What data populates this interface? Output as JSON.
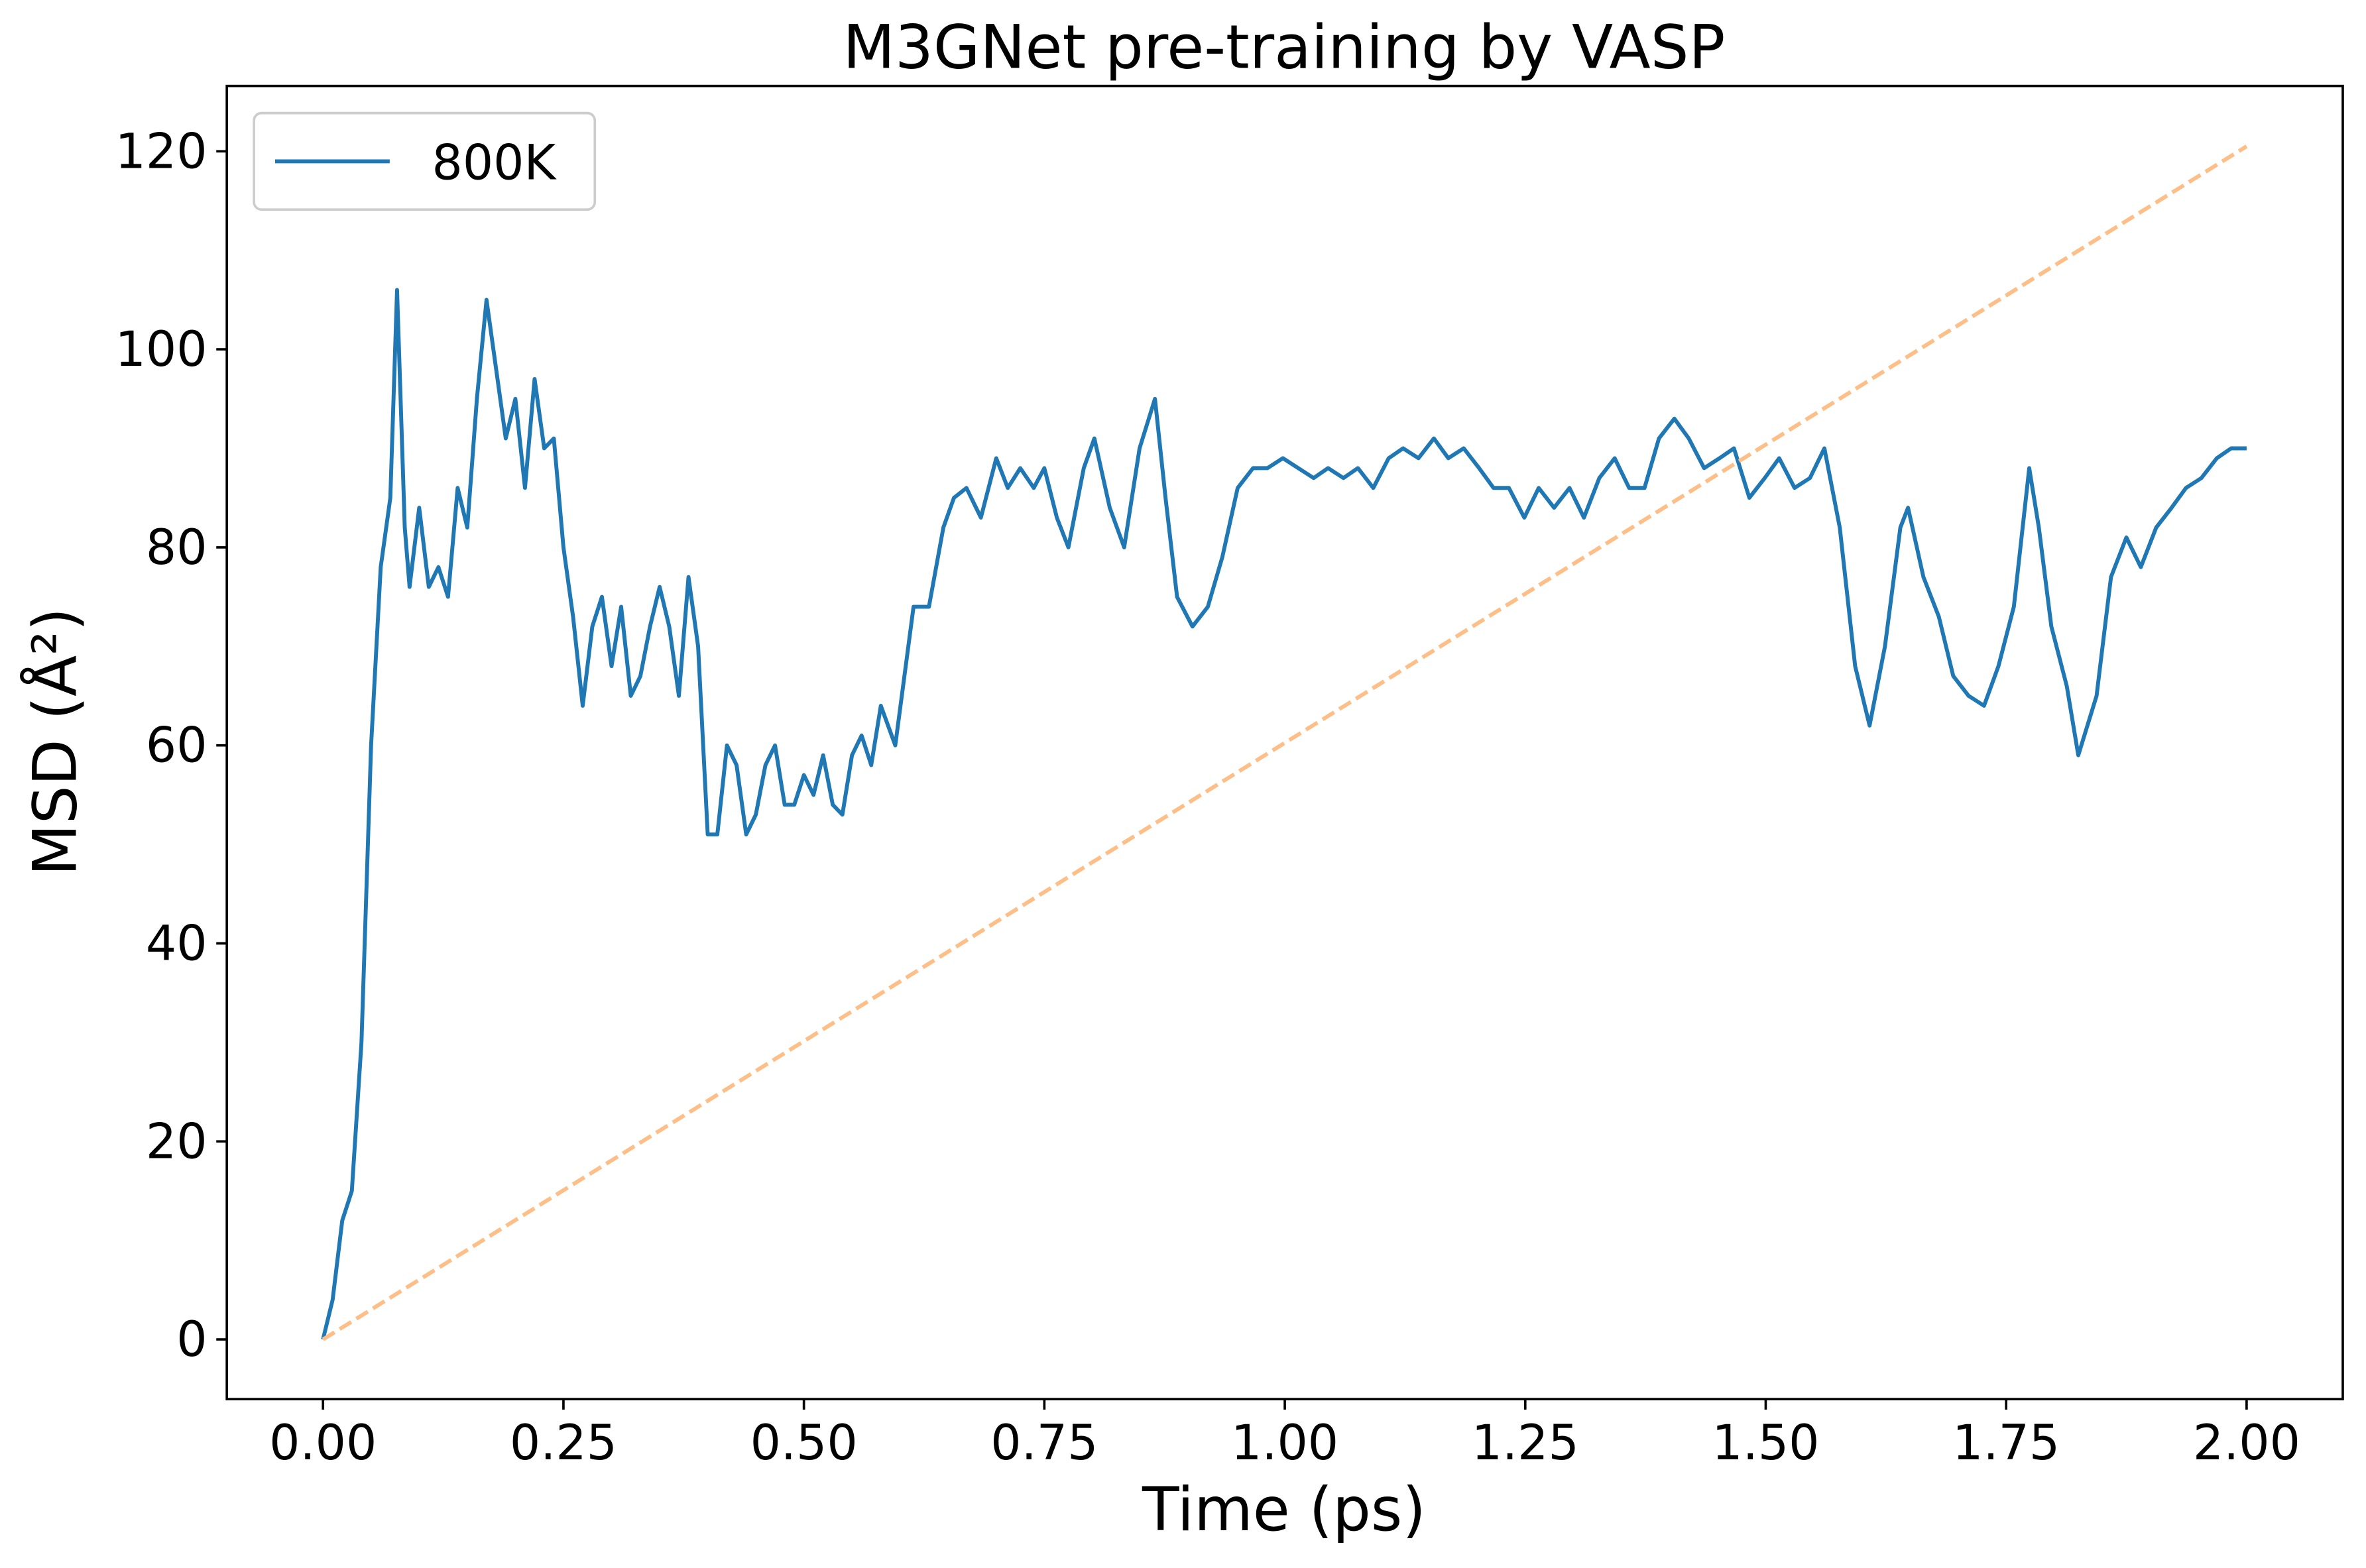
{
  "chart_data": {
    "type": "line",
    "title": "M3GNet pre-training by VASP",
    "xlabel": "Time (ps)",
    "ylabel": "MSD (Å²)",
    "xlim": [
      -0.1,
      2.1
    ],
    "ylim": [
      -6.03,
      126.6
    ],
    "xticks": [
      {
        "value": 0,
        "label": "0.00"
      },
      {
        "value": 0.25,
        "label": "0.25"
      },
      {
        "value": 0.5,
        "label": "0.50"
      },
      {
        "value": 0.75,
        "label": "0.75"
      },
      {
        "value": 1,
        "label": "1.00"
      },
      {
        "value": 1.25,
        "label": "1.25"
      },
      {
        "value": 1.5,
        "label": "1.50"
      },
      {
        "value": 1.75,
        "label": "1.75"
      },
      {
        "value": 2,
        "label": "2.00"
      }
    ],
    "yticks": [
      0,
      20,
      40,
      60,
      80,
      100,
      120
    ],
    "legend": "upper left",
    "series": [
      {
        "name": "800K",
        "color": "#1f77b4",
        "dashed": false,
        "x": [
          0,
          0.01,
          0.02,
          0.03,
          0.04,
          0.05,
          0.06,
          0.07,
          0.077,
          0.085,
          0.09,
          0.1,
          0.11,
          0.12,
          0.13,
          0.14,
          0.15,
          0.16,
          0.17,
          0.18,
          0.19,
          0.2,
          0.21,
          0.22,
          0.23,
          0.24,
          0.25,
          0.26,
          0.27,
          0.28,
          0.29,
          0.3,
          0.31,
          0.32,
          0.33,
          0.34,
          0.35,
          0.36,
          0.37,
          0.38,
          0.39,
          0.4,
          0.41,
          0.42,
          0.43,
          0.44,
          0.45,
          0.46,
          0.47,
          0.48,
          0.49,
          0.5,
          0.51,
          0.52,
          0.53,
          0.54,
          0.55,
          0.56,
          0.57,
          0.58,
          0.595,
          0.614,
          0.63,
          0.645,
          0.656,
          0.669,
          0.684,
          0.7,
          0.712,
          0.725,
          0.739,
          0.75,
          0.763,
          0.775,
          0.791,
          0.802,
          0.818,
          0.833,
          0.849,
          0.865,
          0.876,
          0.888,
          0.904,
          0.92,
          0.935,
          0.951,
          0.967,
          0.982,
          0.998,
          1.014,
          1.03,
          1.045,
          1.061,
          1.076,
          1.092,
          1.108,
          1.123,
          1.139,
          1.155,
          1.17,
          1.186,
          1.202,
          1.217,
          1.233,
          1.249,
          1.264,
          1.28,
          1.296,
          1.311,
          1.327,
          1.343,
          1.358,
          1.374,
          1.389,
          1.405,
          1.42,
          1.436,
          1.452,
          1.467,
          1.483,
          1.499,
          1.514,
          1.53,
          1.546,
          1.561,
          1.577,
          1.593,
          1.608,
          1.624,
          1.64,
          1.648,
          1.664,
          1.68,
          1.695,
          1.711,
          1.727,
          1.742,
          1.758,
          1.774,
          1.784,
          1.797,
          1.813,
          1.825,
          1.844,
          1.859,
          1.875,
          1.89,
          1.906,
          1.922,
          1.937,
          1.953,
          1.969,
          1.984,
          2.0
        ],
        "values": [
          0,
          4,
          12,
          15,
          30,
          60,
          78,
          85,
          106,
          82,
          76,
          84,
          76,
          78,
          75,
          86,
          82,
          95,
          105,
          98,
          91,
          95,
          86,
          97,
          90,
          91,
          80,
          73,
          64,
          72,
          75,
          68,
          74,
          65,
          67,
          72,
          76,
          72,
          65,
          77,
          70,
          51,
          51,
          60,
          58,
          51,
          53,
          58,
          60,
          54,
          54,
          57,
          55,
          59,
          54,
          53,
          59,
          61,
          58,
          64,
          60,
          74,
          74,
          82,
          85,
          86,
          83,
          89,
          86,
          88,
          86,
          88,
          83,
          80,
          88,
          91,
          84,
          80,
          90,
          95,
          85,
          75,
          72,
          74,
          79,
          86,
          88,
          88,
          89,
          88,
          87,
          88,
          87,
          88,
          86,
          89,
          90,
          89,
          91,
          89,
          90,
          88,
          86,
          86,
          83,
          86,
          84,
          86,
          83,
          87,
          89,
          86,
          86,
          91,
          93,
          91,
          88,
          89,
          90,
          85,
          87,
          89,
          86,
          87,
          90,
          82,
          68,
          62,
          70,
          82,
          84,
          77,
          73,
          67,
          65,
          64,
          68,
          74,
          88,
          82,
          72,
          66,
          59,
          65,
          77,
          81,
          78,
          82,
          84,
          86,
          87,
          89,
          90,
          90
        ]
      },
      {
        "color": "#fdbf87",
        "dashed": true,
        "x": [
          0,
          2
        ],
        "values": [
          0,
          120.5
        ]
      }
    ]
  }
}
